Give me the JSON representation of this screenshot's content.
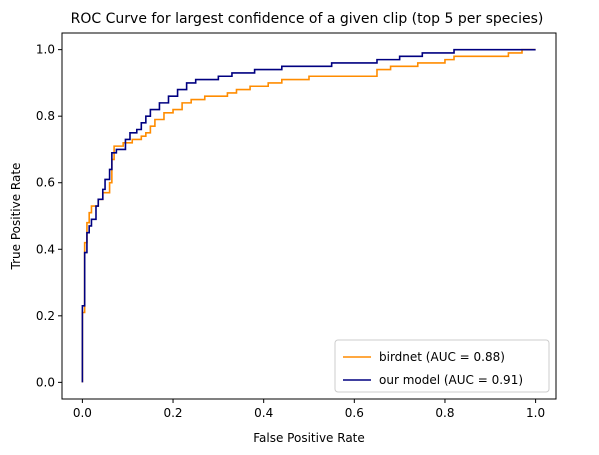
{
  "chart_data": {
    "type": "line",
    "title": "ROC Curve for largest confidence of a given clip (top 5 per species)",
    "xlabel": "False Positive Rate",
    "ylabel": "True Positive Rate",
    "xlim": [
      -0.045,
      1.045
    ],
    "ylim": [
      -0.05,
      1.05
    ],
    "xticks": [
      0.0,
      0.2,
      0.4,
      0.6,
      0.8,
      1.0
    ],
    "xtick_labels": [
      "0.0",
      "0.2",
      "0.4",
      "0.6",
      "0.8",
      "1.0"
    ],
    "yticks": [
      0.0,
      0.2,
      0.4,
      0.6,
      0.8,
      1.0
    ],
    "ytick_labels": [
      "0.0",
      "0.2",
      "0.4",
      "0.6",
      "0.8",
      "1.0"
    ],
    "grid": false,
    "legend_position": "lower right",
    "series": [
      {
        "name": "birdnet (AUC = 0.88)",
        "color": "#ff8c00",
        "points": [
          [
            0.0,
            0.0
          ],
          [
            0.0,
            0.21
          ],
          [
            0.005,
            0.21
          ],
          [
            0.005,
            0.42
          ],
          [
            0.01,
            0.42
          ],
          [
            0.01,
            0.48
          ],
          [
            0.015,
            0.48
          ],
          [
            0.015,
            0.51
          ],
          [
            0.02,
            0.51
          ],
          [
            0.02,
            0.53
          ],
          [
            0.035,
            0.53
          ],
          [
            0.035,
            0.55
          ],
          [
            0.045,
            0.55
          ],
          [
            0.045,
            0.57
          ],
          [
            0.06,
            0.57
          ],
          [
            0.06,
            0.6
          ],
          [
            0.065,
            0.6
          ],
          [
            0.065,
            0.67
          ],
          [
            0.07,
            0.67
          ],
          [
            0.07,
            0.71
          ],
          [
            0.09,
            0.71
          ],
          [
            0.09,
            0.72
          ],
          [
            0.11,
            0.72
          ],
          [
            0.11,
            0.73
          ],
          [
            0.13,
            0.73
          ],
          [
            0.13,
            0.74
          ],
          [
            0.14,
            0.74
          ],
          [
            0.14,
            0.75
          ],
          [
            0.15,
            0.75
          ],
          [
            0.15,
            0.77
          ],
          [
            0.16,
            0.77
          ],
          [
            0.16,
            0.79
          ],
          [
            0.18,
            0.79
          ],
          [
            0.18,
            0.81
          ],
          [
            0.2,
            0.81
          ],
          [
            0.2,
            0.82
          ],
          [
            0.22,
            0.82
          ],
          [
            0.22,
            0.84
          ],
          [
            0.24,
            0.84
          ],
          [
            0.24,
            0.85
          ],
          [
            0.27,
            0.85
          ],
          [
            0.27,
            0.86
          ],
          [
            0.32,
            0.86
          ],
          [
            0.32,
            0.87
          ],
          [
            0.34,
            0.87
          ],
          [
            0.34,
            0.88
          ],
          [
            0.37,
            0.88
          ],
          [
            0.37,
            0.89
          ],
          [
            0.41,
            0.89
          ],
          [
            0.41,
            0.9
          ],
          [
            0.44,
            0.9
          ],
          [
            0.44,
            0.91
          ],
          [
            0.5,
            0.91
          ],
          [
            0.5,
            0.92
          ],
          [
            0.65,
            0.92
          ],
          [
            0.65,
            0.94
          ],
          [
            0.68,
            0.94
          ],
          [
            0.68,
            0.95
          ],
          [
            0.74,
            0.95
          ],
          [
            0.74,
            0.96
          ],
          [
            0.8,
            0.96
          ],
          [
            0.8,
            0.97
          ],
          [
            0.82,
            0.97
          ],
          [
            0.82,
            0.98
          ],
          [
            0.94,
            0.98
          ],
          [
            0.94,
            0.99
          ],
          [
            0.97,
            0.99
          ],
          [
            0.97,
            1.0
          ],
          [
            1.0,
            1.0
          ]
        ]
      },
      {
        "name": "our model (AUC = 0.91)",
        "color": "#000080",
        "points": [
          [
            0.0,
            0.0
          ],
          [
            0.0,
            0.23
          ],
          [
            0.005,
            0.23
          ],
          [
            0.005,
            0.39
          ],
          [
            0.01,
            0.39
          ],
          [
            0.01,
            0.45
          ],
          [
            0.015,
            0.45
          ],
          [
            0.015,
            0.47
          ],
          [
            0.02,
            0.47
          ],
          [
            0.02,
            0.49
          ],
          [
            0.03,
            0.49
          ],
          [
            0.03,
            0.53
          ],
          [
            0.035,
            0.53
          ],
          [
            0.035,
            0.55
          ],
          [
            0.045,
            0.55
          ],
          [
            0.045,
            0.58
          ],
          [
            0.05,
            0.58
          ],
          [
            0.05,
            0.61
          ],
          [
            0.06,
            0.61
          ],
          [
            0.06,
            0.64
          ],
          [
            0.065,
            0.64
          ],
          [
            0.065,
            0.69
          ],
          [
            0.075,
            0.69
          ],
          [
            0.075,
            0.7
          ],
          [
            0.095,
            0.7
          ],
          [
            0.095,
            0.73
          ],
          [
            0.105,
            0.73
          ],
          [
            0.105,
            0.75
          ],
          [
            0.12,
            0.75
          ],
          [
            0.12,
            0.76
          ],
          [
            0.13,
            0.76
          ],
          [
            0.13,
            0.78
          ],
          [
            0.14,
            0.78
          ],
          [
            0.14,
            0.8
          ],
          [
            0.15,
            0.8
          ],
          [
            0.15,
            0.82
          ],
          [
            0.17,
            0.82
          ],
          [
            0.17,
            0.84
          ],
          [
            0.19,
            0.84
          ],
          [
            0.19,
            0.86
          ],
          [
            0.21,
            0.86
          ],
          [
            0.21,
            0.88
          ],
          [
            0.23,
            0.88
          ],
          [
            0.23,
            0.9
          ],
          [
            0.25,
            0.9
          ],
          [
            0.25,
            0.91
          ],
          [
            0.3,
            0.91
          ],
          [
            0.3,
            0.92
          ],
          [
            0.33,
            0.92
          ],
          [
            0.33,
            0.93
          ],
          [
            0.38,
            0.93
          ],
          [
            0.38,
            0.94
          ],
          [
            0.44,
            0.94
          ],
          [
            0.44,
            0.95
          ],
          [
            0.55,
            0.95
          ],
          [
            0.55,
            0.96
          ],
          [
            0.65,
            0.96
          ],
          [
            0.65,
            0.97
          ],
          [
            0.7,
            0.97
          ],
          [
            0.7,
            0.98
          ],
          [
            0.75,
            0.98
          ],
          [
            0.75,
            0.99
          ],
          [
            0.82,
            0.99
          ],
          [
            0.82,
            1.0
          ],
          [
            1.0,
            1.0
          ]
        ]
      }
    ]
  }
}
